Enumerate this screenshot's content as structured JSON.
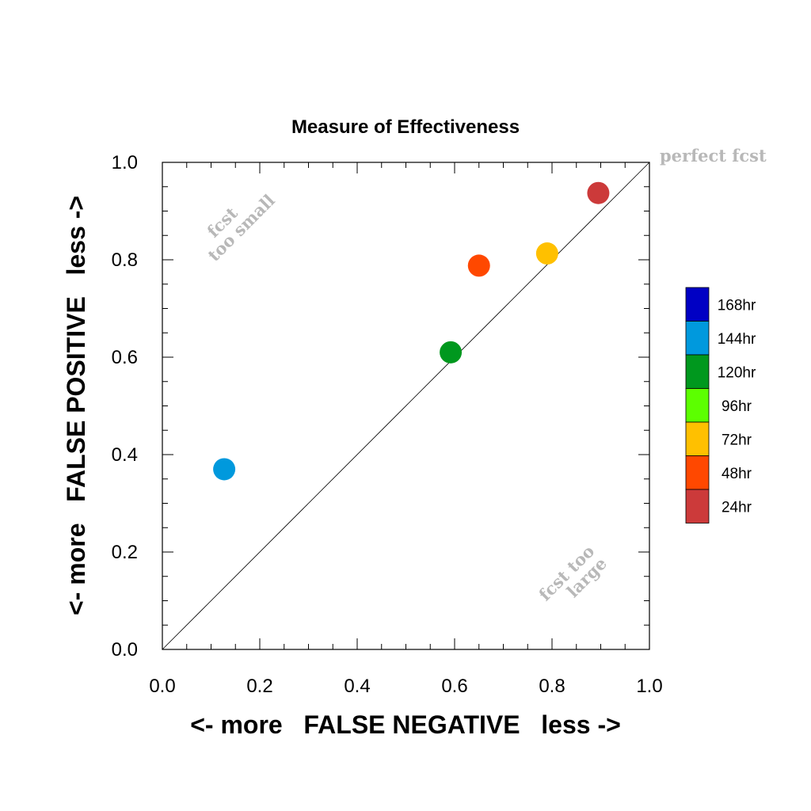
{
  "chart_data": {
    "type": "scatter",
    "title": "Measure of Effectiveness",
    "xlabel": "<- more   FALSE NEGATIVE   less ->",
    "ylabel": "<- more   FALSE POSITIVE   less ->",
    "xlim": [
      0.0,
      1.0
    ],
    "ylim": [
      0.0,
      1.0
    ],
    "xticks": [
      "0.0",
      "0.2",
      "0.4",
      "0.6",
      "0.8",
      "1.0"
    ],
    "yticks": [
      "0.0",
      "0.2",
      "0.4",
      "0.6",
      "0.8",
      "1.0"
    ],
    "grid": false,
    "diagonal_line": true,
    "annotations": {
      "perfect": "perfect fcst",
      "too_small_1": "fcst",
      "too_small_2": "too small",
      "too_large_1": "fcst too",
      "too_large_2": "large"
    },
    "legend": {
      "placement": "right",
      "entries": [
        {
          "label": "168hr",
          "color": "#0000c4"
        },
        {
          "label": "144hr",
          "color": "#0099dd"
        },
        {
          "label": "120hr",
          "color": "#00981e"
        },
        {
          "label": "96hr",
          "color": "#5cff00"
        },
        {
          "label": "72hr",
          "color": "#ffc000"
        },
        {
          "label": "48hr",
          "color": "#ff4800"
        },
        {
          "label": "24hr",
          "color": "#cc3a3a"
        }
      ]
    },
    "series": [
      {
        "name": "24hr",
        "color": "#cc3a3a",
        "x": 0.895,
        "y": 0.937
      },
      {
        "name": "48hr",
        "color": "#ff4800",
        "x": 0.65,
        "y": 0.788
      },
      {
        "name": "72hr",
        "color": "#ffc000",
        "x": 0.79,
        "y": 0.813
      },
      {
        "name": "120hr",
        "color": "#00981e",
        "x": 0.592,
        "y": 0.61
      },
      {
        "name": "144hr",
        "color": "#0099dd",
        "x": 0.127,
        "y": 0.37
      }
    ]
  }
}
